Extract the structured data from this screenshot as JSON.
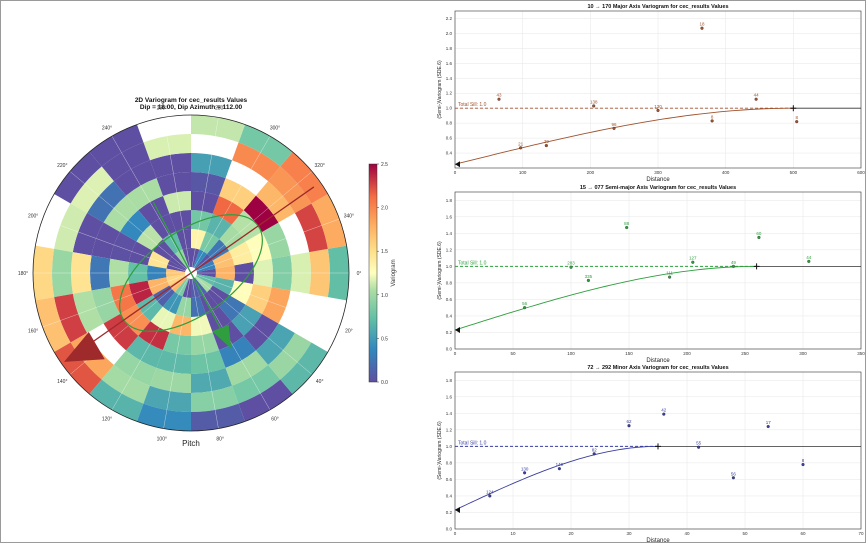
{
  "polar": {
    "title_line1": "2D Variogram for cec_results Values",
    "title_line2": "Dip = 18.00, Dip Azimuth = 112.00",
    "bottom_label": "Pitch",
    "angle_labels": [
      "0°",
      "20°",
      "40°",
      "60°",
      "80°",
      "100°",
      "120°",
      "140°",
      "160°",
      "180°",
      "200°",
      "220°",
      "240°",
      "260°",
      "280°",
      "300°",
      "320°",
      "340°"
    ],
    "colorbar": {
      "label": "Variogram",
      "ticks": [
        "0.0",
        "0.5",
        "1.0",
        "1.5",
        "2.0",
        "2.5"
      ],
      "min": 0,
      "max": 2.5
    }
  },
  "chart_data": [
    {
      "type": "scatter",
      "title": "10 → 170 Major Axis Variogram for cec_results Values",
      "xlabel": "Distance",
      "ylabel": "(Semi-)Variogram (SDE.6)",
      "xlim": [
        0,
        600
      ],
      "ylim": [
        0.2,
        2.3
      ],
      "xticks": [
        "0",
        "100",
        "200",
        "300",
        "400",
        "500",
        "600"
      ],
      "yticks": [
        "0.4",
        "0.6",
        "0.8",
        "1.0",
        "1.2",
        "1.4",
        "1.6",
        "1.8",
        "2.0",
        "2.2"
      ],
      "sill_label": "Total Sill: 1.0",
      "color": "#a0522d",
      "range": 500,
      "nugget": 0.25,
      "points": [
        {
          "x": 65,
          "y": 1.12,
          "label": "43"
        },
        {
          "x": 97,
          "y": 0.47,
          "label": "21"
        },
        {
          "x": 135,
          "y": 0.5,
          "label": "39"
        },
        {
          "x": 205,
          "y": 1.03,
          "label": "138"
        },
        {
          "x": 235,
          "y": 0.73,
          "label": "96"
        },
        {
          "x": 300,
          "y": 0.97,
          "label": "130"
        },
        {
          "x": 365,
          "y": 2.07,
          "label": "18"
        },
        {
          "x": 380,
          "y": 0.83,
          "label": "8"
        },
        {
          "x": 445,
          "y": 1.12,
          "label": "44"
        },
        {
          "x": 505,
          "y": 0.82,
          "label": "8"
        }
      ]
    },
    {
      "type": "scatter",
      "title": "15 → 077 Semi-major Axis Variogram for cec_results Values",
      "xlabel": "Distance",
      "ylabel": "(Semi-)Variogram (SDE.6)",
      "xlim": [
        0,
        350
      ],
      "ylim": [
        0,
        1.9
      ],
      "xticks": [
        "0",
        "50",
        "100",
        "150",
        "200",
        "250",
        "300",
        "350"
      ],
      "yticks": [
        "0.0",
        "0.2",
        "0.4",
        "0.6",
        "0.8",
        "1.0",
        "1.2",
        "1.4",
        "1.6",
        "1.8"
      ],
      "sill_label": "Total Sill: 1.0",
      "color": "#2e9e3e",
      "range": 260,
      "nugget": 0.23,
      "points": [
        {
          "x": 60,
          "y": 0.5,
          "label": "56"
        },
        {
          "x": 100,
          "y": 0.99,
          "label": "283"
        },
        {
          "x": 115,
          "y": 0.83,
          "label": "335"
        },
        {
          "x": 148,
          "y": 1.47,
          "label": "88"
        },
        {
          "x": 185,
          "y": 0.87,
          "label": "111"
        },
        {
          "x": 205,
          "y": 1.05,
          "label": "127"
        },
        {
          "x": 240,
          "y": 1.0,
          "label": "49"
        },
        {
          "x": 262,
          "y": 1.35,
          "label": "60"
        },
        {
          "x": 305,
          "y": 1.06,
          "label": "44"
        }
      ]
    },
    {
      "type": "scatter",
      "title": "72 → 292 Minor Axis Variogram for cec_results Values",
      "xlabel": "Distance",
      "ylabel": "(Semi-)Variogram (SDE.6)",
      "xlim": [
        0,
        70
      ],
      "ylim": [
        0,
        1.9
      ],
      "xticks": [
        "0",
        "10",
        "20",
        "30",
        "40",
        "50",
        "60",
        "70"
      ],
      "yticks": [
        "0.0",
        "0.2",
        "0.4",
        "0.6",
        "0.8",
        "1.0",
        "1.2",
        "1.4",
        "1.6",
        "1.8"
      ],
      "sill_label": "Total Sill: 1.0",
      "color": "#3a3f9e",
      "range": 35,
      "nugget": 0.23,
      "points": [
        {
          "x": 6,
          "y": 0.4,
          "label": "124"
        },
        {
          "x": 12,
          "y": 0.68,
          "label": "130"
        },
        {
          "x": 18,
          "y": 0.73,
          "label": "140"
        },
        {
          "x": 24,
          "y": 0.91,
          "label": "82"
        },
        {
          "x": 30,
          "y": 1.25,
          "label": "62"
        },
        {
          "x": 36,
          "y": 1.39,
          "label": "42"
        },
        {
          "x": 42,
          "y": 0.99,
          "label": "55"
        },
        {
          "x": 48,
          "y": 0.62,
          "label": "56"
        },
        {
          "x": 54,
          "y": 1.24,
          "label": "17"
        },
        {
          "x": 60,
          "y": 0.78,
          "label": "8"
        }
      ]
    }
  ]
}
